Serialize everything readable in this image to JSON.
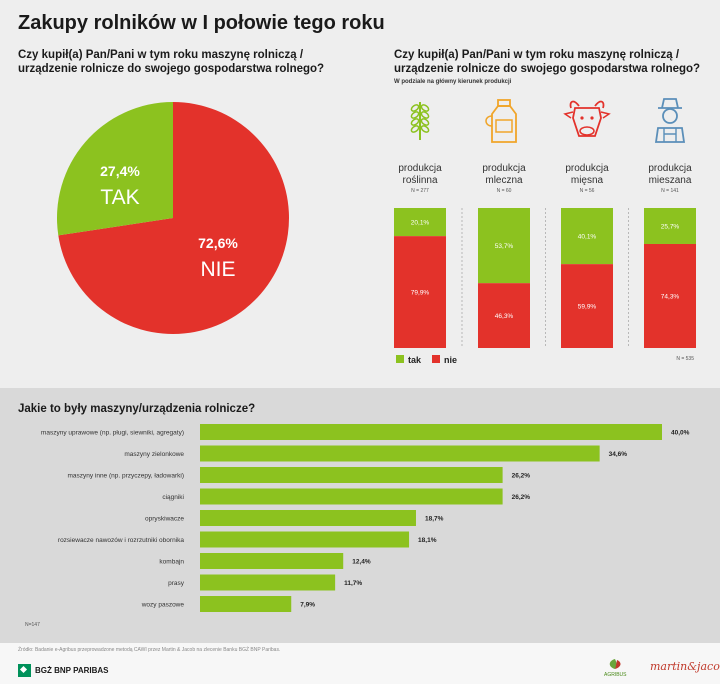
{
  "title": "Zakupy rolników w I połowie tego roku",
  "colors": {
    "green": "#8cc21f",
    "red": "#e3322b",
    "grey": "#d9d9d9"
  },
  "left": {
    "question": "Czy kupił(a) Pan/Pani w tym roku maszynę rolniczą / urządzenie rolnicze do swojego gospodarstwa rolnego?"
  },
  "right": {
    "question": "Czy kupił(a) Pan/Pani w tym roku maszynę rolniczą / urządzenie rolnicze do swojego gospodarstwa rolnego?",
    "subtitle": "W podziale na główny kierunek produkcji",
    "legend_tak": "tak",
    "legend_nie": "nie",
    "n_total": "N = 535"
  },
  "bars_section": {
    "title": "Jakie to były maszyny/urządzenia rolnicze?",
    "n": "N=147"
  },
  "footer": {
    "source": "Źródło: Badanie e-Agribus przeprowadzone metodą CAWI przez Martin & Jacob na zlecenie Banku BGŻ BNP Paribas.",
    "bank": "BGŻ BNP PARIBAS",
    "logo_a": "AGRIBUS",
    "logo_b": "martin&jacob"
  },
  "chart_data": [
    {
      "type": "pie",
      "slices": [
        {
          "label": "TAK",
          "value": 27.4,
          "display": "27,4%"
        },
        {
          "label": "NIE",
          "value": 72.6,
          "display": "72,6%"
        }
      ]
    },
    {
      "type": "bar",
      "stacked": true,
      "categories": [
        {
          "name1": "produkcja",
          "name2": "roślinna",
          "n": "N = 277",
          "icon": "wheat-icon"
        },
        {
          "name1": "produkcja",
          "name2": "mleczna",
          "n": "N = 60",
          "icon": "milk-can-icon"
        },
        {
          "name1": "produkcja",
          "name2": "mięsna",
          "n": "N = 56",
          "icon": "cow-icon"
        },
        {
          "name1": "produkcja",
          "name2": "mieszana",
          "n": "N = 141",
          "icon": "farmer-icon"
        }
      ],
      "series": [
        {
          "name": "tak",
          "values": [
            20.1,
            53.7,
            40.1,
            25.7
          ],
          "labels": [
            "20,1%",
            "53,7%",
            "40,1%",
            "25,7%"
          ]
        },
        {
          "name": "nie",
          "values": [
            79.9,
            46.3,
            59.9,
            74.3
          ],
          "labels": [
            "79,9%",
            "46,3%",
            "59,9%",
            "74,3%"
          ]
        }
      ],
      "ylim": [
        0,
        100
      ]
    },
    {
      "type": "bar",
      "orientation": "horizontal",
      "title": "Jakie to były maszyny/urządzenia rolnicze?",
      "categories": [
        "maszyny uprawowe (np. pługi, siewniki, agregaty)",
        "maszyny zielonkowe",
        "maszyny inne (np. przyczepy, ładowarki)",
        "ciągniki",
        "opryskiwacze",
        "rozsiewacze nawozów i rozrzutniki obornika",
        "kombajn",
        "prasy",
        "wozy paszowe"
      ],
      "values": [
        40.0,
        34.6,
        26.2,
        26.2,
        18.7,
        18.1,
        12.4,
        11.7,
        7.9
      ],
      "labels": [
        "40,0%",
        "34,6%",
        "26,2%",
        "26,2%",
        "18,7%",
        "18,1%",
        "12,4%",
        "11,7%",
        "7,9%"
      ],
      "xlim": [
        0,
        40
      ]
    }
  ]
}
